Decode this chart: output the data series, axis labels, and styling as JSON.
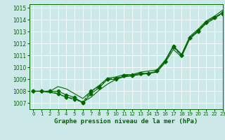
{
  "title": "Graphe pression niveau de la mer (hPa)",
  "bg_color": "#cce8e8",
  "grid_color": "#ffffff",
  "line_color": "#006600",
  "xlim": [
    -0.5,
    23
  ],
  "ylim": [
    1006.5,
    1015.3
  ],
  "yticks": [
    1007,
    1008,
    1009,
    1010,
    1011,
    1012,
    1013,
    1014,
    1015
  ],
  "xticks": [
    0,
    1,
    2,
    3,
    4,
    5,
    6,
    7,
    8,
    9,
    10,
    11,
    12,
    13,
    14,
    15,
    16,
    17,
    18,
    19,
    20,
    21,
    22,
    23
  ],
  "line1_x": [
    0,
    1,
    2,
    3,
    4,
    5,
    6,
    7,
    8,
    9,
    10,
    11,
    12,
    13,
    14,
    15,
    16,
    17,
    18,
    19,
    20,
    21,
    22,
    23
  ],
  "line1_y": [
    1008.0,
    1008.0,
    1008.0,
    1008.0,
    1007.7,
    1007.5,
    1007.0,
    1007.8,
    1008.3,
    1009.0,
    1009.0,
    1009.3,
    1009.3,
    1009.5,
    1009.5,
    1009.7,
    1010.5,
    1011.8,
    1011.0,
    1012.5,
    1013.1,
    1013.8,
    1014.2,
    1014.6
  ],
  "line2_x": [
    0,
    1,
    2,
    3,
    4,
    5,
    6,
    7,
    8,
    9,
    10,
    11,
    12,
    13,
    14,
    15,
    16,
    17,
    18,
    19,
    20,
    21,
    22,
    23
  ],
  "line2_y": [
    1008.0,
    1008.0,
    1007.9,
    1007.8,
    1007.5,
    1007.4,
    1007.1,
    1007.5,
    1008.1,
    1008.6,
    1009.0,
    1009.2,
    1009.3,
    1009.4,
    1009.5,
    1009.6,
    1010.4,
    1011.5,
    1010.9,
    1012.4,
    1013.0,
    1013.7,
    1014.1,
    1014.6
  ],
  "line3_x": [
    0,
    1,
    2,
    3,
    4,
    5,
    6,
    7,
    8,
    9,
    10,
    11,
    12,
    13,
    14,
    15,
    16,
    17,
    18,
    19,
    20,
    21,
    22,
    23
  ],
  "line3_y": [
    1008.0,
    1008.0,
    1008.0,
    1008.4,
    1008.2,
    1007.8,
    1007.4,
    1008.0,
    1008.5,
    1009.1,
    1009.2,
    1009.4,
    1009.4,
    1009.6,
    1009.7,
    1009.8,
    1010.6,
    1011.8,
    1011.1,
    1012.6,
    1013.2,
    1013.9,
    1014.3,
    1014.8
  ],
  "line4_x": [
    0,
    1,
    2,
    3,
    4,
    5,
    6,
    7,
    8,
    9,
    10,
    11,
    12,
    13,
    14,
    15,
    16,
    17,
    18,
    19,
    20,
    21,
    22,
    23
  ],
  "line4_y": [
    1008.0,
    1008.0,
    1008.0,
    1007.8,
    1007.5,
    1007.3,
    1007.1,
    1008.0,
    1008.4,
    1009.0,
    1009.1,
    1009.3,
    1009.4,
    1009.5,
    1009.5,
    1009.7,
    1010.5,
    1011.7,
    1011.0,
    1012.5,
    1013.0,
    1013.8,
    1014.2,
    1014.5
  ],
  "tick_fontsize": 5.5,
  "label_fontsize": 6.5,
  "linewidth": 0.8,
  "markersize": 2.5
}
